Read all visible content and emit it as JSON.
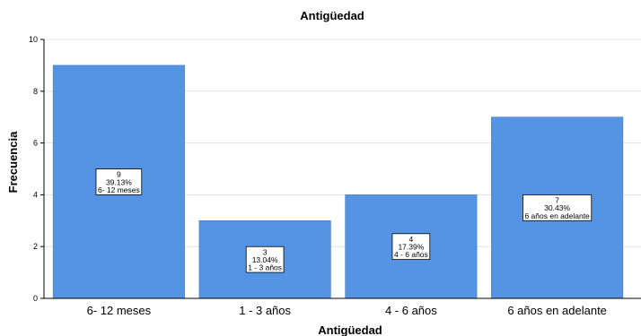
{
  "chart_data": {
    "type": "bar",
    "title": "Antigüedad",
    "xlabel": "Antigüedad",
    "ylabel": "Frecuencia",
    "ylim": [
      0,
      10
    ],
    "yticks": [
      0,
      2,
      4,
      6,
      8,
      10
    ],
    "grid": true,
    "categories": [
      "6- 12 meses",
      "1 - 3 años",
      "4 - 6 años",
      "6 años en adelante"
    ],
    "values": [
      9,
      3,
      4,
      7
    ],
    "data_labels": [
      [
        "9",
        "39.13%",
        "6- 12 meses"
      ],
      [
        "3",
        "13.04%",
        "1 - 3 años"
      ],
      [
        "4",
        "17.39%",
        "4 - 6 años"
      ],
      [
        "7",
        "30.43%",
        "6 años en adelante"
      ]
    ],
    "colors": {
      "bar": "#5594E3",
      "bar_edge": "#3F7BC9",
      "grid": "#E3E3E3",
      "axis": "#000000"
    }
  }
}
